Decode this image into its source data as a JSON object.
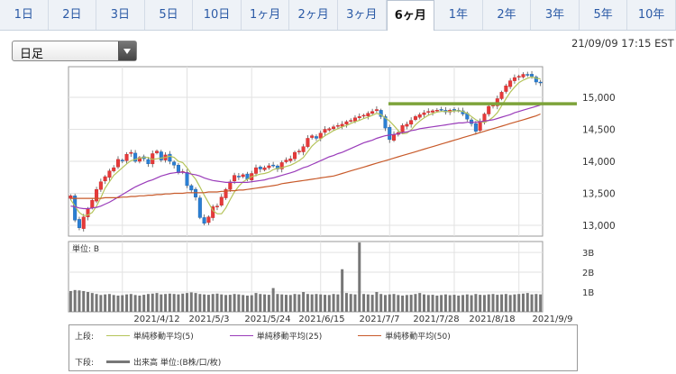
{
  "tabs": [
    {
      "label": "1日"
    },
    {
      "label": "2日"
    },
    {
      "label": "3日"
    },
    {
      "label": "5日"
    },
    {
      "label": "10日"
    },
    {
      "label": "1ヶ月"
    },
    {
      "label": "2ヶ月"
    },
    {
      "label": "3ヶ月"
    },
    {
      "label": "6ヶ月",
      "active": true
    },
    {
      "label": "1年"
    },
    {
      "label": "2年"
    },
    {
      "label": "3年"
    },
    {
      "label": "5年"
    },
    {
      "label": "10年"
    }
  ],
  "interval_select": {
    "value": "日足"
  },
  "timestamp": "21/09/09 17:15 EST",
  "chart_data": [
    {
      "type": "candlestick",
      "panel": "price",
      "x_tick_labels": [
        "2021/4/12",
        "2021/5/3",
        "2021/5/24",
        "2021/6/15",
        "2021/7/7",
        "2021/7/28",
        "2021/8/18",
        "2021/9/9"
      ],
      "y_tick_labels": [
        "15,000",
        "14,500",
        "14,000",
        "13,500",
        "13,000"
      ],
      "y_ticks": [
        15000,
        14500,
        14000,
        13500,
        13000
      ],
      "ylim": [
        12830,
        15480
      ],
      "grid": true,
      "close": [
        13460,
        13080,
        12960,
        13130,
        13260,
        13390,
        13560,
        13680,
        13760,
        13850,
        13900,
        14030,
        14010,
        14110,
        14140,
        14000,
        14060,
        14040,
        13960,
        14120,
        14160,
        14020,
        14100,
        14000,
        13940,
        13820,
        13840,
        13620,
        13550,
        13440,
        13120,
        13030,
        13130,
        13290,
        13300,
        13440,
        13560,
        13680,
        13780,
        13760,
        13790,
        13720,
        13810,
        13900,
        13880,
        13900,
        13930,
        13940,
        13880,
        13980,
        14020,
        14040,
        14140,
        14160,
        14230,
        14360,
        14400,
        14360,
        14440,
        14500,
        14510,
        14540,
        14560,
        14580,
        14620,
        14640,
        14680,
        14700,
        14720,
        14750,
        14780,
        14810,
        14700,
        14520,
        14340,
        14420,
        14450,
        14560,
        14580,
        14640,
        14700,
        14730,
        14760,
        14780,
        14790,
        14800,
        14810,
        14770,
        14800,
        14810,
        14790,
        14740,
        14660,
        14590,
        14470,
        14620,
        14740,
        14860,
        14880,
        14980,
        15080,
        15180,
        15260,
        15310,
        15330,
        15360,
        15350,
        15330,
        15240,
        15230
      ],
      "series": [
        {
          "name": "単純移動平均(5)",
          "color": "#b5c45a",
          "values": [
            13400,
            13300,
            13200,
            13150,
            13160,
            13200,
            13300,
            13430,
            13580,
            13680,
            13780,
            13840,
            13900,
            13960,
            14010,
            14030,
            14050,
            14060,
            14060,
            14030,
            14040,
            14050,
            14060,
            14080,
            14060,
            14000,
            13980,
            13900,
            13800,
            13720,
            13600,
            13470,
            13350,
            13230,
            13180,
            13180,
            13270,
            13400,
            13520,
            13610,
            13680,
            13720,
            13760,
            13780,
            13800,
            13810,
            13830,
            13870,
            13890,
            13900,
            13920,
            13940,
            13970,
            14010,
            14060,
            14150,
            14240,
            14300,
            14350,
            14400,
            14440,
            14480,
            14510,
            14540,
            14560,
            14590,
            14620,
            14640,
            14670,
            14690,
            14720,
            14750,
            14730,
            14680,
            14630,
            14560,
            14480,
            14430,
            14440,
            14490,
            14570,
            14630,
            14680,
            14720,
            14750,
            14770,
            14780,
            14780,
            14780,
            14790,
            14790,
            14780,
            14750,
            14700,
            14650,
            14620,
            14610,
            14640,
            14690,
            14760,
            14870,
            14980,
            15080,
            15160,
            15230,
            15270,
            15300,
            15320,
            15300,
            15290
          ]
        },
        {
          "name": "単純移動平均(25)",
          "color": "#9a3cba",
          "values": [
            13300,
            13290,
            13270,
            13260,
            13260,
            13270,
            13280,
            13300,
            13330,
            13360,
            13400,
            13440,
            13480,
            13520,
            13560,
            13600,
            13630,
            13660,
            13690,
            13710,
            13740,
            13770,
            13790,
            13810,
            13820,
            13830,
            13830,
            13820,
            13800,
            13790,
            13770,
            13740,
            13720,
            13700,
            13690,
            13680,
            13670,
            13670,
            13670,
            13670,
            13670,
            13670,
            13680,
            13690,
            13700,
            13710,
            13730,
            13740,
            13760,
            13780,
            13800,
            13820,
            13840,
            13870,
            13900,
            13920,
            13950,
            13980,
            14010,
            14040,
            14070,
            14090,
            14120,
            14140,
            14170,
            14200,
            14230,
            14260,
            14290,
            14310,
            14330,
            14360,
            14380,
            14400,
            14410,
            14420,
            14430,
            14450,
            14460,
            14480,
            14490,
            14510,
            14520,
            14530,
            14540,
            14550,
            14560,
            14570,
            14580,
            14590,
            14600,
            14600,
            14610,
            14610,
            14610,
            14620,
            14630,
            14640,
            14650,
            14670,
            14690,
            14710,
            14730,
            14760,
            14780,
            14800,
            14820,
            14840,
            14860,
            14880
          ]
        },
        {
          "name": "単純移動平均(50)",
          "color": "#c85a2a",
          "values": [
            13420,
            13420,
            13420,
            13420,
            13420,
            13420,
            13420,
            13420,
            13430,
            13430,
            13430,
            13430,
            13440,
            13440,
            13450,
            13450,
            13460,
            13460,
            13470,
            13470,
            13480,
            13480,
            13490,
            13490,
            13500,
            13500,
            13500,
            13510,
            13510,
            13510,
            13510,
            13510,
            13520,
            13520,
            13520,
            13530,
            13530,
            13540,
            13540,
            13550,
            13550,
            13560,
            13570,
            13580,
            13590,
            13600,
            13610,
            13620,
            13630,
            13650,
            13660,
            13670,
            13680,
            13690,
            13700,
            13710,
            13720,
            13730,
            13740,
            13750,
            13760,
            13770,
            13790,
            13810,
            13830,
            13850,
            13870,
            13890,
            13910,
            13930,
            13950,
            13970,
            13990,
            14010,
            14030,
            14050,
            14070,
            14090,
            14110,
            14130,
            14150,
            14170,
            14190,
            14210,
            14230,
            14250,
            14270,
            14290,
            14310,
            14330,
            14350,
            14370,
            14390,
            14410,
            14430,
            14450,
            14470,
            14490,
            14510,
            14530,
            14550,
            14570,
            14590,
            14610,
            14630,
            14650,
            14670,
            14690,
            14710,
            14740
          ]
        }
      ],
      "horizontal_line": {
        "value": 14900,
        "color": "#7da33a"
      }
    },
    {
      "type": "bar",
      "panel": "volume",
      "y_tick_labels": [
        "3B",
        "2B",
        "1B"
      ],
      "y_ticks": [
        3,
        2,
        1
      ],
      "ylim": [
        0,
        3.55
      ],
      "grid": true,
      "series": [
        {
          "name": "出来高",
          "color": "#777777",
          "values": [
            1.05,
            1.1,
            1.08,
            1.05,
            1.0,
            0.95,
            0.9,
            0.85,
            0.88,
            0.9,
            0.85,
            0.82,
            0.84,
            0.88,
            0.9,
            0.85,
            0.82,
            0.86,
            0.9,
            0.92,
            0.95,
            0.88,
            0.9,
            0.92,
            0.9,
            0.88,
            0.92,
            0.95,
            0.98,
            0.95,
            0.9,
            0.88,
            0.86,
            0.9,
            0.92,
            0.88,
            0.85,
            0.86,
            0.9,
            0.88,
            0.85,
            0.82,
            0.84,
            0.95,
            0.9,
            0.88,
            0.86,
            1.2,
            0.9,
            0.88,
            0.86,
            0.85,
            0.9,
            0.88,
            1.0,
            0.9,
            0.88,
            0.9,
            0.88,
            0.86,
            0.85,
            0.9,
            0.88,
            2.15,
            0.95,
            0.9,
            0.88,
            3.5,
            0.9,
            0.88,
            0.86,
            1.0,
            0.9,
            0.85,
            0.88,
            0.9,
            0.85,
            0.82,
            0.85,
            0.86,
            0.9,
            0.95,
            0.88,
            0.85,
            0.86,
            0.82,
            0.85,
            0.88,
            0.84,
            0.86,
            0.82,
            0.85,
            0.88,
            0.84,
            0.9,
            0.86,
            0.85,
            0.88,
            0.9,
            0.86,
            0.88,
            0.9,
            0.85,
            0.88,
            0.9,
            0.92,
            0.95,
            0.88,
            0.9,
            0.88
          ]
        }
      ]
    }
  ],
  "legend": {
    "upper_label": "上段:",
    "lower_label": "下段:",
    "items": [
      {
        "text": "単純移動平均(5)",
        "color": "#b5c45a"
      },
      {
        "text": "単純移動平均(25)",
        "color": "#9a3cba"
      },
      {
        "text": "単純移動平均(50)",
        "color": "#c85a2a"
      }
    ],
    "volume_text": "出来高 単位:(B株/口/枚)",
    "volume_color": "#777777"
  }
}
